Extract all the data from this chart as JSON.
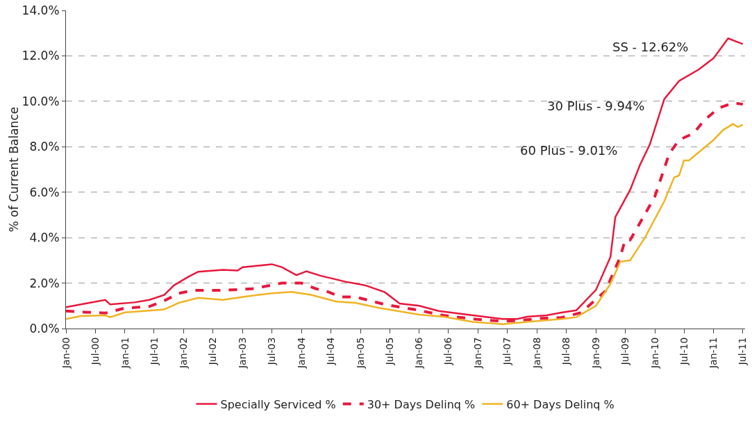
{
  "chart_data": {
    "type": "line",
    "ylabel": "% of Current Balance",
    "xlim": [
      "2000-01-01",
      "2011-07-15"
    ],
    "xticks": [
      {
        "value": "2000-01",
        "label": "Jan-00"
      },
      {
        "value": "2000-07",
        "label": "Jul-00"
      },
      {
        "value": "2001-01",
        "label": "Jan-01"
      },
      {
        "value": "2001-07",
        "label": "Jul-01"
      },
      {
        "value": "2002-01",
        "label": "Jan-02"
      },
      {
        "value": "2002-07",
        "label": "Jul-02"
      },
      {
        "value": "2003-01",
        "label": "Jan-03"
      },
      {
        "value": "2003-07",
        "label": "Jul-03"
      },
      {
        "value": "2004-01",
        "label": "Jan-04"
      },
      {
        "value": "2004-07",
        "label": "Jul-04"
      },
      {
        "value": "2005-01",
        "label": "Jan-05"
      },
      {
        "value": "2005-07",
        "label": "Jul-05"
      },
      {
        "value": "2006-01",
        "label": "Jan-06"
      },
      {
        "value": "2006-07",
        "label": "Jul-06"
      },
      {
        "value": "2007-01",
        "label": "Jan-07"
      },
      {
        "value": "2007-07",
        "label": "Jul-07"
      },
      {
        "value": "2008-01",
        "label": "Jan-08"
      },
      {
        "value": "2008-07",
        "label": "Jul-08"
      },
      {
        "value": "2009-01",
        "label": "Jan-09"
      },
      {
        "value": "2009-07",
        "label": "Jul-09"
      },
      {
        "value": "2010-01",
        "label": "Jan-10"
      },
      {
        "value": "2010-07",
        "label": "Jul-10"
      },
      {
        "value": "2011-01",
        "label": "Jan-11"
      },
      {
        "value": "2011-07",
        "label": "Jul-11"
      }
    ],
    "ylim": [
      0,
      14
    ],
    "yticks": [
      {
        "value": 0,
        "label": "0.0%"
      },
      {
        "value": 2,
        "label": "2.0%"
      },
      {
        "value": 4,
        "label": "4.0%"
      },
      {
        "value": 6,
        "label": "6.0%"
      },
      {
        "value": 8,
        "label": "8.0%"
      },
      {
        "value": 10,
        "label": "10.0%"
      },
      {
        "value": 12,
        "label": "12.0%"
      },
      {
        "value": 14,
        "label": "14.0%"
      }
    ],
    "grid": "y",
    "legend": "bottom",
    "marker": "none",
    "annotations": [
      "SS - 12.62%",
      "30 Plus - 9.94%",
      "60 Plus - 9.01%"
    ],
    "series": [
      {
        "name": "Specially Serviced %",
        "color": "#e8173c",
        "line_style": "solid",
        "x": [
          "2000-01",
          "2000-05",
          "2000-09",
          "2000-10",
          "2001-03",
          "2001-06",
          "2001-09",
          "2001-11",
          "2002-02",
          "2002-04",
          "2002-09",
          "2002-12",
          "2003-01",
          "2003-07",
          "2003-09",
          "2003-12",
          "2004-02",
          "2004-05",
          "2004-10",
          "2005-02",
          "2005-06",
          "2005-09",
          "2006-01",
          "2006-05",
          "2006-12",
          "2007-06",
          "2007-09",
          "2007-11",
          "2008-03",
          "2008-06",
          "2008-09",
          "2009-01",
          "2009-04",
          "2009-05",
          "2009-08",
          "2009-10",
          "2009-12",
          "2010-03",
          "2010-06",
          "2010-10",
          "2011-01",
          "2011-04",
          "2011-07"
        ],
        "values": [
          0.94,
          1.1,
          1.26,
          1.06,
          1.15,
          1.26,
          1.48,
          1.9,
          2.29,
          2.5,
          2.58,
          2.55,
          2.7,
          2.83,
          2.7,
          2.35,
          2.52,
          2.32,
          2.06,
          1.9,
          1.6,
          1.1,
          1.0,
          0.77,
          0.58,
          0.42,
          0.42,
          0.52,
          0.58,
          0.7,
          0.8,
          1.7,
          3.15,
          4.9,
          6.1,
          7.2,
          8.1,
          10.1,
          10.9,
          11.4,
          11.9,
          12.77,
          12.52
        ]
      },
      {
        "name": "30+ Days Delinq %",
        "color": "#e8173c",
        "line_style": "dashed",
        "x": [
          "2000-01",
          "2000-05",
          "2000-09",
          "2001-01",
          "2001-06",
          "2001-09",
          "2001-12",
          "2002-03",
          "2002-09",
          "2003-03",
          "2003-06",
          "2003-09",
          "2004-01",
          "2004-04",
          "2004-06",
          "2004-09",
          "2004-12",
          "2005-06",
          "2005-12",
          "2006-06",
          "2006-12",
          "2007-06",
          "2007-09",
          "2008-02",
          "2008-06",
          "2008-10",
          "2009-03",
          "2009-06",
          "2009-07",
          "2009-08",
          "2009-10",
          "2010-01",
          "2010-04",
          "2010-06",
          "2010-09",
          "2010-11",
          "2011-02",
          "2011-05",
          "2011-07"
        ],
        "values": [
          0.77,
          0.72,
          0.68,
          0.9,
          0.97,
          1.22,
          1.55,
          1.68,
          1.68,
          1.75,
          1.87,
          2.0,
          2.0,
          1.75,
          1.65,
          1.39,
          1.39,
          1.06,
          0.84,
          0.58,
          0.42,
          0.32,
          0.35,
          0.45,
          0.48,
          0.7,
          1.65,
          3.15,
          3.9,
          3.9,
          4.65,
          5.8,
          7.7,
          8.3,
          8.6,
          9.15,
          9.7,
          9.93,
          9.87
        ]
      },
      {
        "name": "60+ Days Delinq %",
        "color": "#f0b323",
        "line_style": "solid",
        "x": [
          "2000-01",
          "2000-04",
          "2000-09",
          "2000-10",
          "2001-01",
          "2001-05",
          "2001-09",
          "2001-12",
          "2002-04",
          "2002-09",
          "2003-02",
          "2003-07",
          "2003-11",
          "2004-03",
          "2004-08",
          "2004-12",
          "2005-05",
          "2006-01",
          "2006-06",
          "2006-12",
          "2007-06",
          "2007-11",
          "2008-06",
          "2008-09",
          "2009-01",
          "2009-04",
          "2009-06",
          "2009-08",
          "2009-11",
          "2010-03",
          "2010-05",
          "2010-06",
          "2010-07",
          "2010-08",
          "2011-01",
          "2011-03",
          "2011-05",
          "2011-06",
          "2011-07"
        ],
        "values": [
          0.42,
          0.55,
          0.58,
          0.5,
          0.71,
          0.77,
          0.84,
          1.13,
          1.35,
          1.26,
          1.42,
          1.55,
          1.61,
          1.48,
          1.19,
          1.13,
          0.9,
          0.61,
          0.52,
          0.29,
          0.19,
          0.29,
          0.42,
          0.5,
          1.0,
          1.97,
          2.94,
          3.0,
          4.0,
          5.6,
          6.65,
          6.74,
          7.4,
          7.4,
          8.3,
          8.74,
          9.0,
          8.87,
          8.97
        ]
      }
    ]
  }
}
